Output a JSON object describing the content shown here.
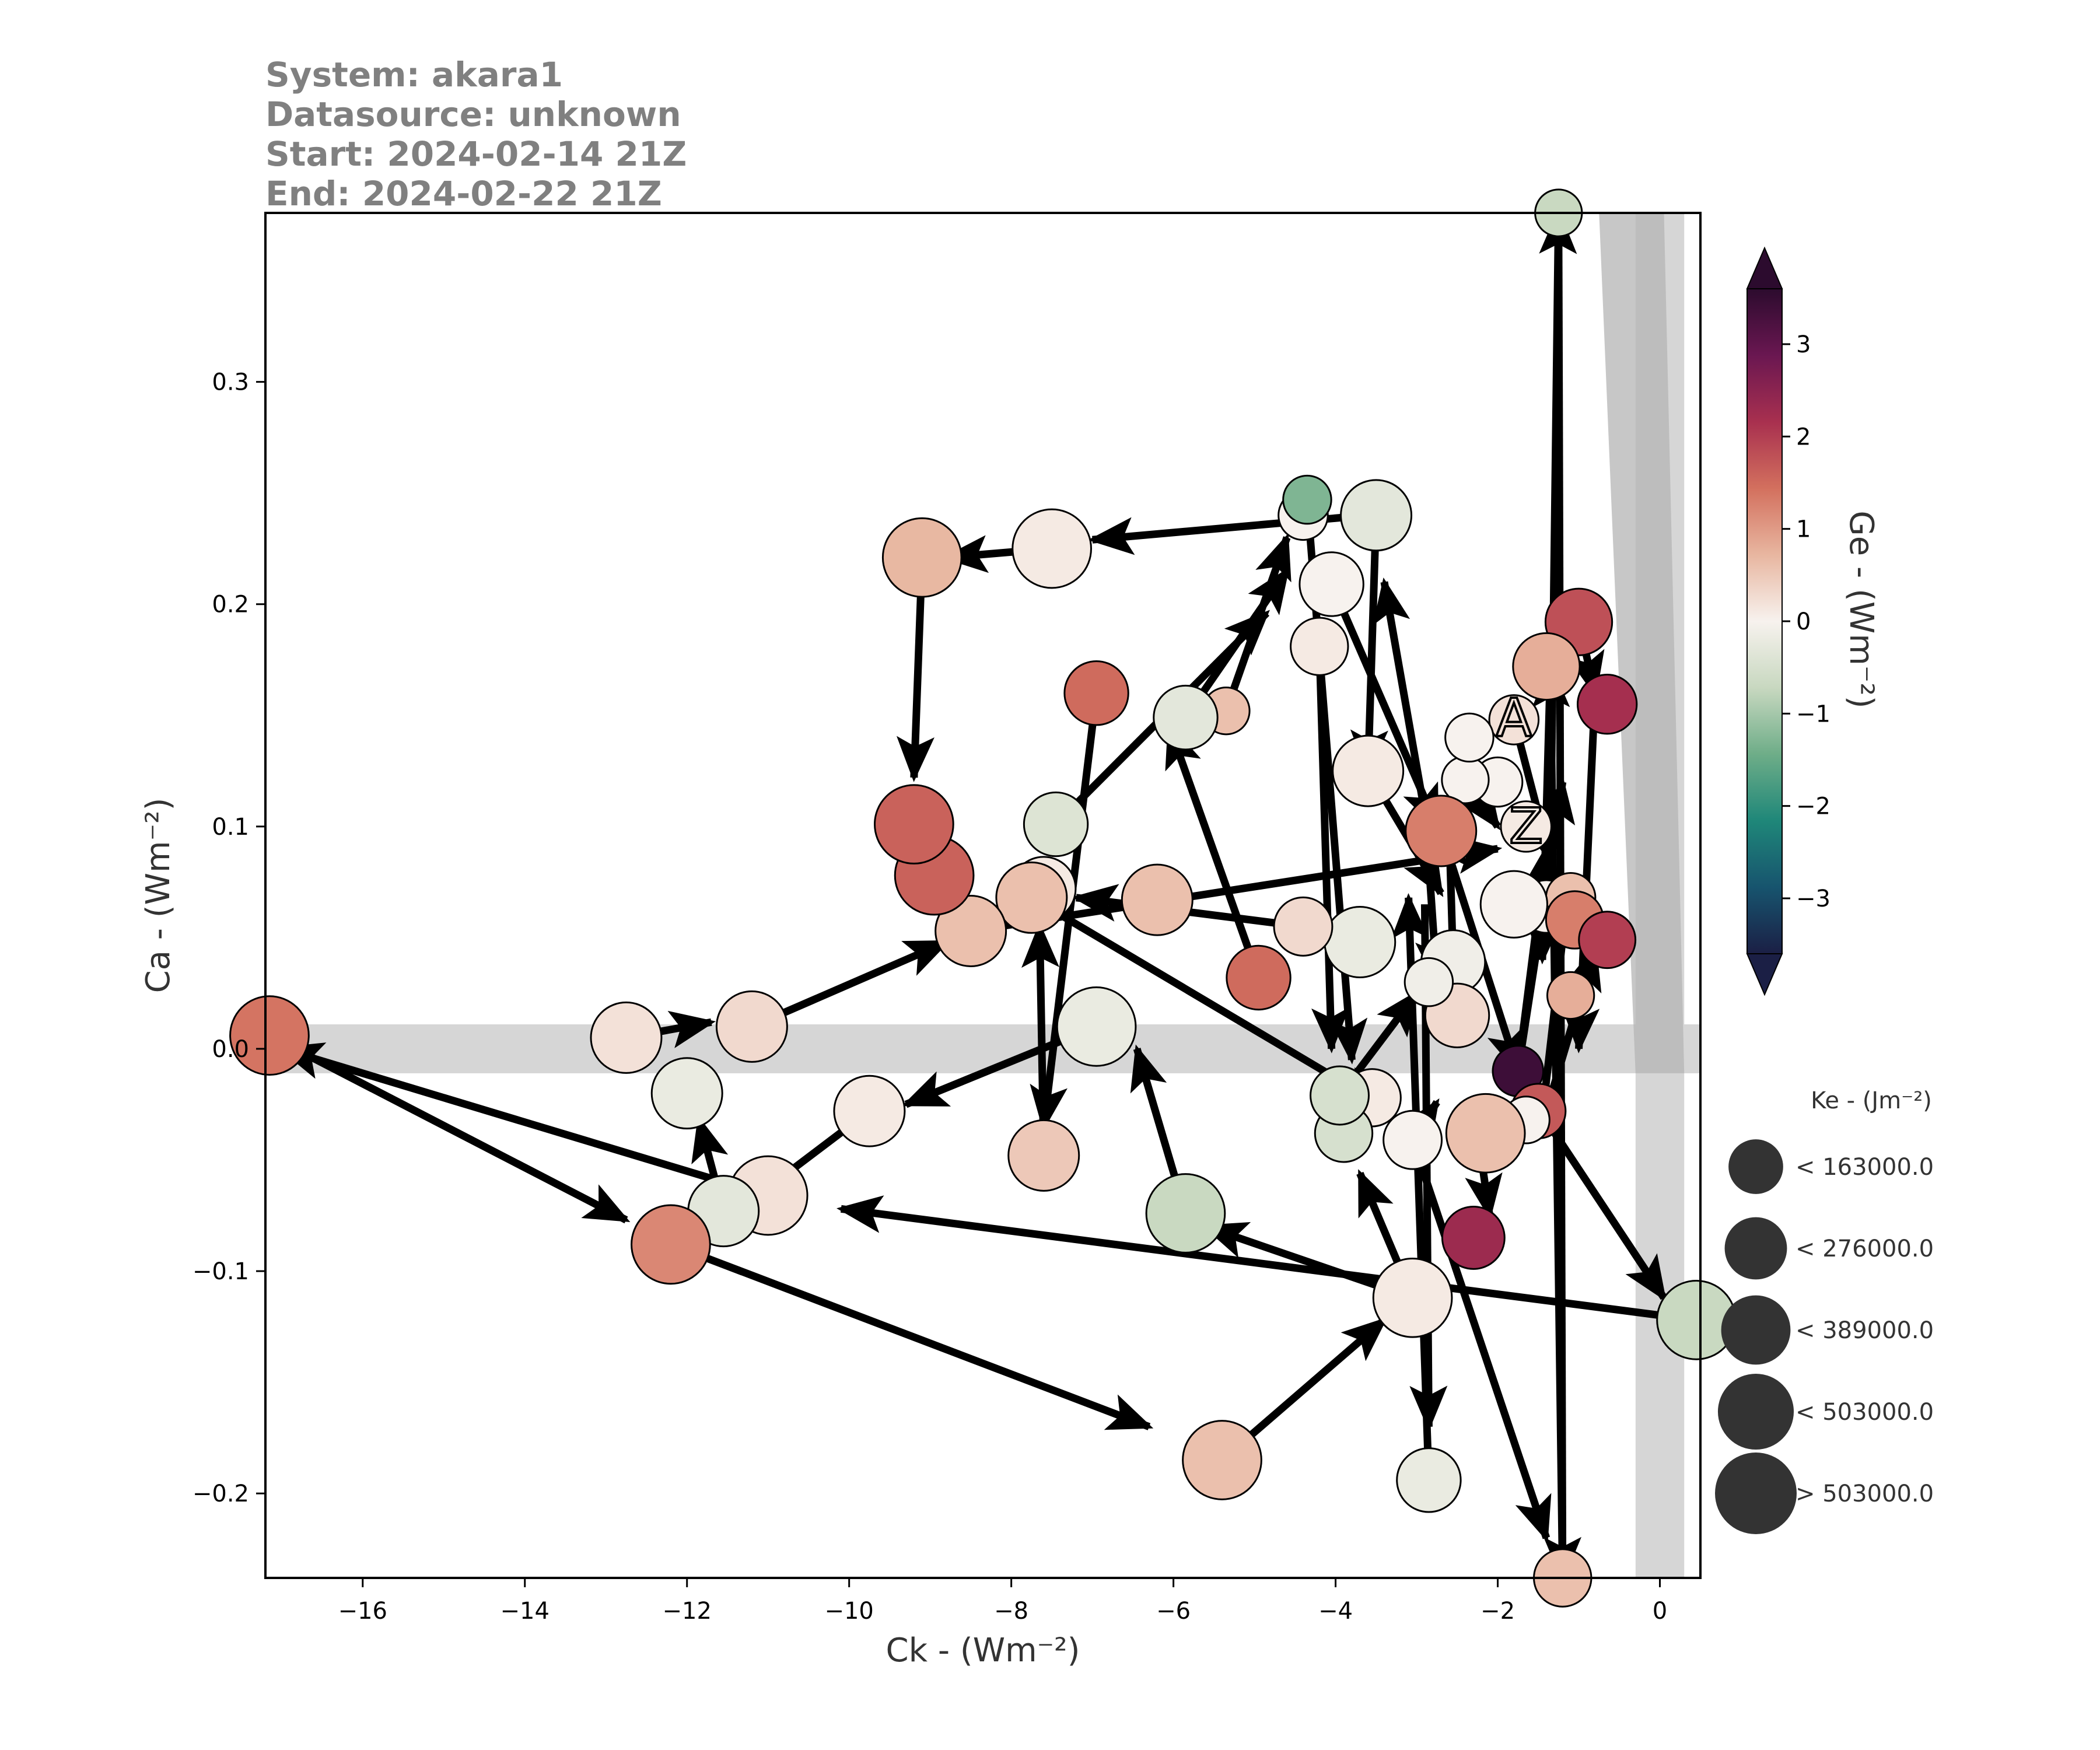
{
  "info": {
    "system": "System: akara1",
    "datasource": "Datasource: unknown",
    "start": "Start: 2024-02-14 21Z",
    "end": "End: 2024-02-22 21Z"
  },
  "chart_data": {
    "type": "scatter",
    "subtype": "phase-trajectory",
    "xlabel": "Ck - (Wm⁻²)",
    "ylabel": "Ca - (Wm⁻²)",
    "xlim": [
      -17.2,
      0.5
    ],
    "ylim": [
      -0.238,
      0.376
    ],
    "xticks": [
      -16,
      -14,
      -12,
      -10,
      -8,
      -6,
      -4,
      -2,
      0
    ],
    "xtick_labels": [
      "−16",
      "−14",
      "−12",
      "−10",
      "−8",
      "−6",
      "−4",
      "−2",
      "0"
    ],
    "yticks": [
      -0.2,
      -0.1,
      0.0,
      0.1,
      0.2,
      0.3
    ],
    "ytick_labels": [
      "−0.2",
      "−0.1",
      "0.0",
      "0.1",
      "0.2",
      "0.3"
    ],
    "colorbar": {
      "label": "Ge - (Wm⁻²)",
      "range": [
        -3.6,
        3.6
      ],
      "ticks": [
        -3,
        -2,
        -1,
        0,
        1,
        2,
        3
      ],
      "tick_labels": [
        "−3",
        "−2",
        "−1",
        "0",
        "1",
        "2",
        "3"
      ],
      "extend": "both",
      "colors": [
        "#1b1f45",
        "#17546e",
        "#1f8779",
        "#6ead88",
        "#c8d8c0",
        "#f7f2ee",
        "#e8b6a0",
        "#d3705e",
        "#a8304f",
        "#6a1751",
        "#2c0b2e"
      ]
    },
    "size_legend": {
      "title": "Ke - (Jm⁻²)",
      "placement": "right",
      "entries": [
        {
          "label": "< 163000.0",
          "ke": 150000
        },
        {
          "label": "< 276000.0",
          "ke": 240000
        },
        {
          "label": "< 389000.0",
          "ke": 340000
        },
        {
          "label": "< 503000.0",
          "ke": 450000
        },
        {
          "label": "> 503000.0",
          "ke": 560000
        }
      ]
    },
    "shading": [
      {
        "orientation": "horizontal",
        "from": -0.011,
        "to": 0.011
      },
      {
        "orientation": "vertical",
        "from": -0.3,
        "to": 0.3
      }
    ],
    "start_marker": "A",
    "end_marker": "Z",
    "points": [
      {
        "x": -1.8,
        "y": 0.148,
        "ge": 0.2,
        "ke": 100000
      },
      {
        "x": -2.0,
        "y": 0.12,
        "ge": 0.0,
        "ke": 100000
      },
      {
        "x": -1.65,
        "y": 0.1,
        "ge": 0.1,
        "ke": 110000
      },
      {
        "x": -1.4,
        "y": 0.064,
        "ge": 0.0,
        "ke": 130000
      },
      {
        "x": -1.75,
        "y": -0.01,
        "ge": 3.4,
        "ke": 110000
      },
      {
        "x": -1.0,
        "y": 0.192,
        "ge": 1.8,
        "ke": 300000
      },
      {
        "x": -0.65,
        "y": 0.155,
        "ge": 2.2,
        "ke": 200000
      },
      {
        "x": -1.4,
        "y": 0.172,
        "ge": 0.8,
        "ke": 300000
      },
      {
        "x": -1.1,
        "y": 0.068,
        "ge": 0.6,
        "ke": 100000
      },
      {
        "x": -1.05,
        "y": 0.058,
        "ge": 1.3,
        "ke": 180000
      },
      {
        "x": -0.65,
        "y": 0.049,
        "ge": 2.0,
        "ke": 170000
      },
      {
        "x": -1.1,
        "y": 0.024,
        "ge": 0.8,
        "ke": 80000
      },
      {
        "x": -1.5,
        "y": -0.028,
        "ge": 1.7,
        "ke": 150000
      },
      {
        "x": -1.65,
        "y": -0.032,
        "ge": 0.0,
        "ke": 80000
      },
      {
        "x": -2.15,
        "y": -0.038,
        "ge": 0.6,
        "ke": 500000
      },
      {
        "x": -2.3,
        "y": -0.085,
        "ge": 2.3,
        "ke": 240000
      },
      {
        "x": 0.45,
        "y": -0.122,
        "ge": -0.7,
        "ke": 500000
      },
      {
        "x": -1.2,
        "y": -0.238,
        "ge": 0.6,
        "ke": 180000
      },
      {
        "x": -1.25,
        "y": 0.376,
        "ge": -0.7,
        "ke": 80000
      },
      {
        "x": -1.8,
        "y": 0.065,
        "ge": 0.0,
        "ke": 300000
      },
      {
        "x": -2.4,
        "y": 0.121,
        "ge": 0.0,
        "ke": 80000
      },
      {
        "x": -2.35,
        "y": 0.14,
        "ge": 0.0,
        "ke": 90000
      },
      {
        "x": -2.7,
        "y": 0.098,
        "ge": 1.3,
        "ke": 360000
      },
      {
        "x": -2.55,
        "y": 0.039,
        "ge": -0.1,
        "ke": 260000
      },
      {
        "x": -2.5,
        "y": 0.015,
        "ge": 0.3,
        "ke": 260000
      },
      {
        "x": -2.85,
        "y": 0.03,
        "ge": -0.1,
        "ke": 90000
      },
      {
        "x": -3.7,
        "y": 0.048,
        "ge": -0.2,
        "ke": 360000
      },
      {
        "x": -4.4,
        "y": 0.055,
        "ge": 0.3,
        "ke": 190000
      },
      {
        "x": -3.6,
        "y": 0.125,
        "ge": 0.1,
        "ke": 360000
      },
      {
        "x": -3.5,
        "y": 0.24,
        "ge": -0.3,
        "ke": 360000
      },
      {
        "x": -4.4,
        "y": 0.24,
        "ge": 0.0,
        "ke": 100000
      },
      {
        "x": -4.35,
        "y": 0.247,
        "ge": -1.3,
        "ke": 90000
      },
      {
        "x": -4.05,
        "y": 0.209,
        "ge": 0.0,
        "ke": 260000
      },
      {
        "x": -4.2,
        "y": 0.181,
        "ge": 0.1,
        "ke": 180000
      },
      {
        "x": -5.35,
        "y": 0.152,
        "ge": 0.6,
        "ke": 80000
      },
      {
        "x": -5.85,
        "y": 0.149,
        "ge": -0.3,
        "ke": 260000
      },
      {
        "x": -6.95,
        "y": 0.16,
        "ge": 1.5,
        "ke": 260000
      },
      {
        "x": -7.45,
        "y": 0.101,
        "ge": -0.4,
        "ke": 260000
      },
      {
        "x": -7.6,
        "y": 0.072,
        "ge": 0.1,
        "ke": 260000
      },
      {
        "x": -7.75,
        "y": 0.068,
        "ge": 0.6,
        "ke": 360000
      },
      {
        "x": -6.2,
        "y": 0.067,
        "ge": 0.6,
        "ke": 360000
      },
      {
        "x": -4.95,
        "y": 0.032,
        "ge": 1.5,
        "ke": 260000
      },
      {
        "x": -6.95,
        "y": 0.01,
        "ge": -0.2,
        "ke": 500000
      },
      {
        "x": -7.6,
        "y": -0.048,
        "ge": 0.5,
        "ke": 360000
      },
      {
        "x": -5.85,
        "y": -0.074,
        "ge": -0.7,
        "ke": 500000
      },
      {
        "x": -9.75,
        "y": -0.028,
        "ge": 0.1,
        "ke": 360000
      },
      {
        "x": -11.0,
        "y": -0.066,
        "ge": 0.2,
        "ke": 500000
      },
      {
        "x": -11.55,
        "y": -0.073,
        "ge": -0.3,
        "ke": 360000
      },
      {
        "x": -12.0,
        "y": -0.02,
        "ge": -0.2,
        "ke": 360000
      },
      {
        "x": -12.75,
        "y": 0.005,
        "ge": 0.2,
        "ke": 360000
      },
      {
        "x": -11.2,
        "y": 0.01,
        "ge": 0.3,
        "ke": 360000
      },
      {
        "x": -8.5,
        "y": 0.053,
        "ge": 0.6,
        "ke": 360000
      },
      {
        "x": -8.95,
        "y": 0.078,
        "ge": 1.6,
        "ke": 500000
      },
      {
        "x": -9.2,
        "y": 0.101,
        "ge": 1.6,
        "ke": 500000
      },
      {
        "x": -9.1,
        "y": 0.221,
        "ge": 0.7,
        "ke": 500000
      },
      {
        "x": -7.5,
        "y": 0.225,
        "ge": 0.1,
        "ke": 500000
      },
      {
        "x": -17.15,
        "y": 0.006,
        "ge": 1.4,
        "ke": 500000
      },
      {
        "x": -12.2,
        "y": -0.088,
        "ge": 1.2,
        "ke": 500000
      },
      {
        "x": -5.4,
        "y": -0.185,
        "ge": 0.6,
        "ke": 500000
      },
      {
        "x": -3.05,
        "y": -0.112,
        "ge": 0.1,
        "ke": 500000
      },
      {
        "x": -2.85,
        "y": -0.194,
        "ge": -0.2,
        "ke": 260000
      },
      {
        "x": -3.05,
        "y": -0.041,
        "ge": 0.0,
        "ke": 190000
      },
      {
        "x": -3.55,
        "y": -0.022,
        "ge": 0.1,
        "ke": 180000
      },
      {
        "x": -3.9,
        "y": -0.038,
        "ge": -0.5,
        "ke": 180000
      },
      {
        "x": -3.95,
        "y": -0.021,
        "ge": -0.5,
        "ke": 190000
      }
    ],
    "path": [
      {
        "from": [
          -1.8,
          0.148
        ],
        "to": [
          -1.35,
          0.085
        ]
      },
      {
        "from": [
          -1.35,
          0.085
        ],
        "to": [
          -1.25,
          0.376
        ]
      },
      {
        "from": [
          -1.25,
          0.376
        ],
        "to": [
          -1.2,
          -0.238
        ]
      },
      {
        "from": [
          -1.2,
          -0.238
        ],
        "to": [
          -1.35,
          0.172
        ]
      },
      {
        "from": [
          -1.35,
          0.172
        ],
        "to": [
          -1.45,
          0.04
        ]
      },
      {
        "from": [
          -1.0,
          0.192
        ],
        "to": [
          -0.8,
          0.16
        ]
      },
      {
        "from": [
          -0.8,
          0.16
        ],
        "to": [
          -1.0,
          0.0
        ]
      },
      {
        "from": [
          -1.75,
          -0.01
        ],
        "to": [
          -1.2,
          0.12
        ]
      },
      {
        "from": [
          -1.75,
          -0.01
        ],
        "to": [
          -1.4,
          0.09
        ]
      },
      {
        "from": [
          -1.4,
          -0.028
        ],
        "to": [
          -0.8,
          0.045
        ]
      },
      {
        "from": [
          -1.45,
          -0.03
        ],
        "to": [
          -1.15,
          0.065
        ]
      },
      {
        "from": [
          -2.4,
          0.121
        ],
        "to": [
          -2.0,
          0.1
        ]
      },
      {
        "from": [
          -2.7,
          0.098
        ],
        "to": [
          -1.75,
          -0.01
        ]
      },
      {
        "from": [
          -2.55,
          0.039
        ],
        "to": [
          -2.6,
          0.1
        ]
      },
      {
        "from": [
          -2.9,
          0.11
        ],
        "to": [
          -2.75,
          0.03
        ]
      },
      {
        "from": [
          -3.6,
          0.125
        ],
        "to": [
          -2.7,
          0.07
        ]
      },
      {
        "from": [
          -3.5,
          0.24
        ],
        "to": [
          -3.6,
          0.125
        ]
      },
      {
        "from": [
          -2.75,
          0.075
        ],
        "to": [
          -3.4,
          0.21
        ]
      },
      {
        "from": [
          -4.05,
          0.209
        ],
        "to": [
          -2.75,
          0.1
        ]
      },
      {
        "from": [
          -4.35,
          0.247
        ],
        "to": [
          -3.8,
          -0.005
        ]
      },
      {
        "from": [
          -4.2,
          0.181
        ],
        "to": [
          -4.05,
          0.0
        ]
      },
      {
        "from": [
          -4.95,
          0.032
        ],
        "to": [
          -6.05,
          0.145
        ]
      },
      {
        "from": [
          -4.4,
          0.055
        ],
        "to": [
          -7.2,
          0.068
        ]
      },
      {
        "from": [
          -5.85,
          0.149
        ],
        "to": [
          -4.6,
          0.215
        ]
      },
      {
        "from": [
          -5.35,
          0.152
        ],
        "to": [
          -4.6,
          0.23
        ]
      },
      {
        "from": [
          -6.95,
          0.16
        ],
        "to": [
          -7.6,
          -0.035
        ]
      },
      {
        "from": [
          -7.6,
          -0.048
        ],
        "to": [
          -7.65,
          0.055
        ]
      },
      {
        "from": [
          -7.45,
          0.101
        ],
        "to": [
          -4.85,
          0.196
        ]
      },
      {
        "from": [
          -3.6,
          0.24
        ],
        "to": [
          -7.0,
          0.229
        ]
      },
      {
        "from": [
          -7.5,
          0.225
        ],
        "to": [
          -8.8,
          0.221
        ]
      },
      {
        "from": [
          -9.1,
          0.221
        ],
        "to": [
          -9.2,
          0.122
        ]
      },
      {
        "from": [
          -7.75,
          0.068
        ],
        "to": [
          -3.45,
          -0.025
        ]
      },
      {
        "from": [
          -8.5,
          0.053
        ],
        "to": [
          -2.0,
          0.09
        ]
      },
      {
        "from": [
          -11.2,
          0.01
        ],
        "to": [
          -8.8,
          0.048
        ]
      },
      {
        "from": [
          -12.75,
          0.005
        ],
        "to": [
          -11.7,
          0.012
        ]
      },
      {
        "from": [
          -11.0,
          -0.066
        ],
        "to": [
          -17.0,
          0.0
        ]
      },
      {
        "from": [
          -17.15,
          0.006
        ],
        "to": [
          -12.75,
          -0.077
        ]
      },
      {
        "from": [
          -12.2,
          -0.088
        ],
        "to": [
          -6.3,
          -0.17
        ]
      },
      {
        "from": [
          -5.4,
          -0.185
        ],
        "to": [
          -3.4,
          -0.122
        ]
      },
      {
        "from": [
          -3.05,
          -0.112
        ],
        "to": [
          -5.6,
          -0.08
        ]
      },
      {
        "from": [
          -3.05,
          -0.112
        ],
        "to": [
          -3.7,
          -0.056
        ]
      },
      {
        "from": [
          0.45,
          -0.122
        ],
        "to": [
          -10.1,
          -0.072
        ]
      },
      {
        "from": [
          -1.35,
          -0.035
        ],
        "to": [
          0.05,
          -0.112
        ]
      },
      {
        "from": [
          -2.85,
          -0.194
        ],
        "to": [
          -3.1,
          0.068
        ]
      },
      {
        "from": [
          -2.9,
          0.065
        ],
        "to": [
          -2.85,
          -0.17
        ]
      },
      {
        "from": [
          -3.05,
          -0.041
        ],
        "to": [
          -2.75,
          -0.024
        ]
      },
      {
        "from": [
          -3.05,
          -0.041
        ],
        "to": [
          -1.4,
          -0.22
        ]
      },
      {
        "from": [
          -3.95,
          -0.021
        ],
        "to": [
          -3.0,
          0.025
        ]
      },
      {
        "from": [
          -5.85,
          -0.074
        ],
        "to": [
          -6.45,
          0.0
        ]
      },
      {
        "from": [
          -6.95,
          0.01
        ],
        "to": [
          -9.3,
          -0.025
        ]
      },
      {
        "from": [
          -9.75,
          -0.028
        ],
        "to": [
          -11.2,
          -0.068
        ]
      },
      {
        "from": [
          -11.55,
          -0.073
        ],
        "to": [
          -11.85,
          -0.032
        ]
      },
      {
        "from": [
          -2.2,
          -0.05
        ],
        "to": [
          -2.1,
          -0.075
        ]
      }
    ]
  }
}
